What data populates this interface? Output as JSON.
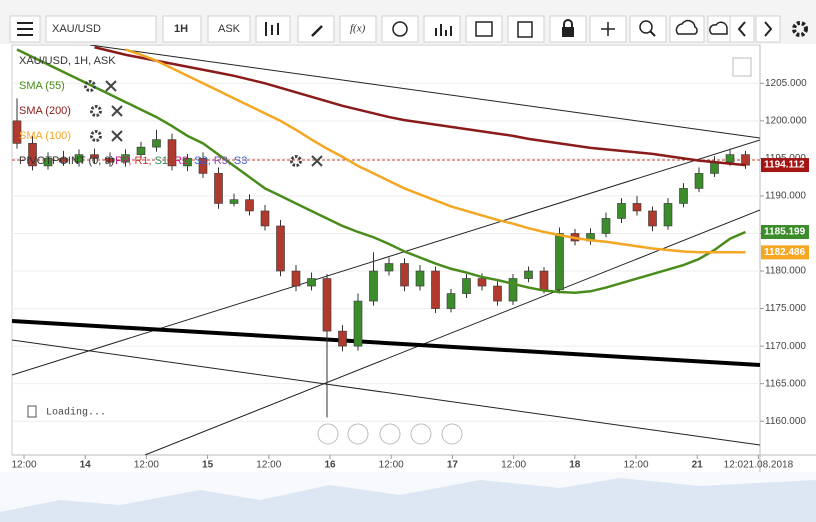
{
  "toolbar": {
    "symbol": "XAU/USD",
    "interval": "1H",
    "price_type": "ASK",
    "fx": "f(x)"
  },
  "legend": {
    "title": "XAU/USD, 1H, ASK",
    "indicators": [
      {
        "name": "SMA (55)",
        "color": "#4a8c1c"
      },
      {
        "name": "SMA (200)",
        "color": "#8b1a1a"
      },
      {
        "name": "SMA (100)",
        "color": "#f5a623"
      }
    ],
    "pivot": {
      "name": "PIVOTPOINT (0, 9)",
      "parts": [
        {
          "text": "PP,",
          "color": "#c71585"
        },
        {
          "text": "R1,",
          "color": "#c0392b"
        },
        {
          "text": "S1,",
          "color": "#2e8b57"
        },
        {
          "text": "R2,",
          "color": "#c71585"
        },
        {
          "text": "S2,",
          "color": "#3a5fcd"
        },
        {
          "text": "R3,",
          "color": "#8e44ad"
        },
        {
          "text": "S3",
          "color": "#3a5fcd"
        }
      ]
    }
  },
  "loading": "Loading...",
  "chart_data": {
    "type": "candlestick",
    "ylim": [
      1155.5,
      1210.1
    ],
    "yticks": [
      {
        "value": 1160,
        "label": "1160.000"
      },
      {
        "value": 1165,
        "label": "1165.000"
      },
      {
        "value": 1170,
        "label": "1170.000"
      },
      {
        "value": 1175,
        "label": "1175.000"
      },
      {
        "value": 1180,
        "label": "1180.000"
      },
      {
        "value": 1185,
        "label": "1185.000"
      },
      {
        "value": 1190,
        "label": "1190.000"
      },
      {
        "value": 1195,
        "label": "1195.000"
      },
      {
        "value": 1200,
        "label": "1200.000"
      },
      {
        "value": 1205,
        "label": "1205.000"
      }
    ],
    "x_labels": [
      "12:00",
      "14",
      "12:00",
      "15",
      "12:00",
      "16",
      "12:00",
      "17",
      "12:00",
      "18",
      "12:00",
      "21",
      "12:021.08.2018"
    ],
    "up_color": "#3c8c2c",
    "down_color": "#b03a2e",
    "open": [
      1200,
      1197,
      1194,
      1195,
      1194.5,
      1195.5,
      1195,
      1194.5,
      1195.5,
      1196.5,
      1197.5,
      1194,
      1195,
      1193,
      1189,
      1189.5,
      1188,
      1186,
      1180,
      1178,
      1179,
      1172,
      1170,
      1176,
      1180,
      1181,
      1178,
      1180,
      1175,
      1177,
      1179,
      1178,
      1176,
      1179,
      1180,
      1177.5,
      1185,
      1184,
      1185,
      1187,
      1189,
      1188,
      1186,
      1189,
      1191,
      1193,
      1194.5,
      1195.5
    ],
    "high": [
      1203,
      1198,
      1195.8,
      1196,
      1196.2,
      1196.3,
      1195.8,
      1196.2,
      1197.2,
      1198.8,
      1198.3,
      1195.6,
      1195.8,
      1193.8,
      1190.3,
      1190.2,
      1188.8,
      1186.8,
      1180.8,
      1179.8,
      1179.6,
      1172.8,
      1177,
      1182.5,
      1181.8,
      1181.7,
      1180.8,
      1180.6,
      1177.6,
      1179.6,
      1179.7,
      1178.7,
      1179.6,
      1180.6,
      1180.5,
      1185.8,
      1185.6,
      1185.7,
      1187.8,
      1189.7,
      1190,
      1188.6,
      1189.7,
      1191.7,
      1193.8,
      1195.3,
      1196.3,
      1196
    ],
    "low": [
      1196.3,
      1193.4,
      1193.5,
      1194,
      1193.9,
      1194.3,
      1193.9,
      1193.9,
      1194.9,
      1195.9,
      1193.4,
      1193.3,
      1192.4,
      1188.3,
      1188.6,
      1187.4,
      1185.4,
      1179.3,
      1177.3,
      1177.4,
      1160.5,
      1169.3,
      1169.4,
      1175.4,
      1179.4,
      1177.3,
      1177.4,
      1174.4,
      1174.5,
      1176.4,
      1177.4,
      1175.4,
      1175.5,
      1178.5,
      1177,
      1177,
      1183.4,
      1183.5,
      1184.5,
      1186.4,
      1187.4,
      1185.3,
      1185.5,
      1188.5,
      1190.5,
      1192.5,
      1194,
      1193.6
    ],
    "close": [
      1197,
      1194,
      1195,
      1194.5,
      1195.5,
      1195,
      1194.5,
      1195.5,
      1196.5,
      1197.5,
      1194,
      1195,
      1193,
      1189,
      1189.5,
      1188,
      1186,
      1180,
      1178,
      1179,
      1172,
      1170,
      1176,
      1180,
      1181,
      1178,
      1180,
      1175,
      1177,
      1179,
      1178,
      1176,
      1179,
      1180,
      1177.5,
      1185,
      1184,
      1185,
      1187,
      1189,
      1188,
      1186,
      1189,
      1191,
      1193,
      1194.5,
      1195.5,
      1194.1
    ],
    "series": [
      {
        "name": "SMA (55)",
        "color": "#4a8c1c",
        "values": [
          1209.5,
          1208.5,
          1207.5,
          1206.5,
          1205.5,
          1204.5,
          1203.5,
          1202.5,
          1201.5,
          1200.5,
          1199.3,
          1198,
          1197,
          1195.5,
          1194,
          1192.5,
          1191,
          1190,
          1189,
          1188,
          1187,
          1186,
          1185.2,
          1184.5,
          1183.6,
          1182.6,
          1181.8,
          1181,
          1180.3,
          1179.8,
          1179.2,
          1178.8,
          1178.3,
          1177.8,
          1177.4,
          1177.2,
          1177.1,
          1177.3,
          1177.8,
          1178.4,
          1179,
          1179.6,
          1180.2,
          1180.8,
          1181.6,
          1182.8,
          1184.3,
          1185.2
        ]
      },
      {
        "name": "SMA (200)",
        "color": "#8b1a1a",
        "values": [
          null,
          null,
          null,
          null,
          null,
          1209.8,
          1209.3,
          1208.8,
          1208.4,
          1208,
          1207.6,
          1207.2,
          1206.8,
          1206.4,
          1206,
          1205.5,
          1205,
          1204.4,
          1203.8,
          1203.2,
          1202.6,
          1202,
          1201.5,
          1201,
          1200.5,
          1200.1,
          1199.8,
          1199.5,
          1199.2,
          1198.9,
          1198.6,
          1198.3,
          1198,
          1197.6,
          1197.3,
          1197,
          1196.7,
          1196.4,
          1196.2,
          1196,
          1195.8,
          1195.6,
          1195.3,
          1195,
          1194.7,
          1194.5,
          1194.3,
          1194.1
        ]
      },
      {
        "name": "SMA (100)",
        "color": "#f5a623",
        "values": [
          null,
          null,
          null,
          null,
          null,
          null,
          null,
          1209.5,
          1208.8,
          1208,
          1207,
          1206,
          1205,
          1204,
          1203,
          1202,
          1201,
          1200,
          1198.8,
          1197.5,
          1196.3,
          1195.2,
          1194,
          1193,
          1192,
          1191,
          1190.2,
          1189.4,
          1188.6,
          1188,
          1187.4,
          1186.8,
          1186.3,
          1185.7,
          1185.2,
          1184.8,
          1184.4,
          1184.1,
          1183.9,
          1183.6,
          1183.3,
          1183,
          1182.8,
          1182.6,
          1182.5,
          1182.5,
          1182.5,
          1182.5
        ]
      }
    ],
    "price_labels": [
      {
        "value": 1194.112,
        "color": "#a31515"
      },
      {
        "value": 1185.199,
        "color": "#3c8c2c"
      },
      {
        "value": 1182.486,
        "color": "#f5a623"
      }
    ]
  }
}
